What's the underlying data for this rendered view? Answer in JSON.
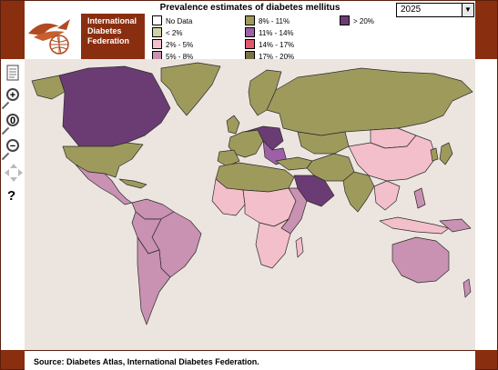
{
  "title": "Prevalence estimates of diabetes mellitus",
  "year_select": {
    "value": "2025"
  },
  "organization": {
    "line1": "International",
    "line2": "Diabetes",
    "line3": "Federation"
  },
  "legend": {
    "items": [
      {
        "label": "No Data",
        "color": "#ffffff"
      },
      {
        "label": "< 2%",
        "color": "#cfd3a4"
      },
      {
        "label": "2% - 5%",
        "color": "#f3bfcb"
      },
      {
        "label": "5% - 8%",
        "color": "#c991b2"
      },
      {
        "label": "8% - 11%",
        "color": "#9e9a5c"
      },
      {
        "label": "11% - 14%",
        "color": "#9d5fa6"
      },
      {
        "label": "14% - 17%",
        "color": "#e4556e"
      },
      {
        "label": "17% - 20%",
        "color": "#7a7046"
      },
      {
        "label": "> 20%",
        "color": "#6b3c74"
      }
    ]
  },
  "tools": {
    "zoom_reset_label": "0",
    "help_label": "?"
  },
  "colors": {
    "brand": "#8a2e10",
    "ocean": "#ece5df",
    "border": "#2b2b2b"
  },
  "footer": {
    "source": "Source: Diabetes Atlas, International Diabetes Federation."
  }
}
